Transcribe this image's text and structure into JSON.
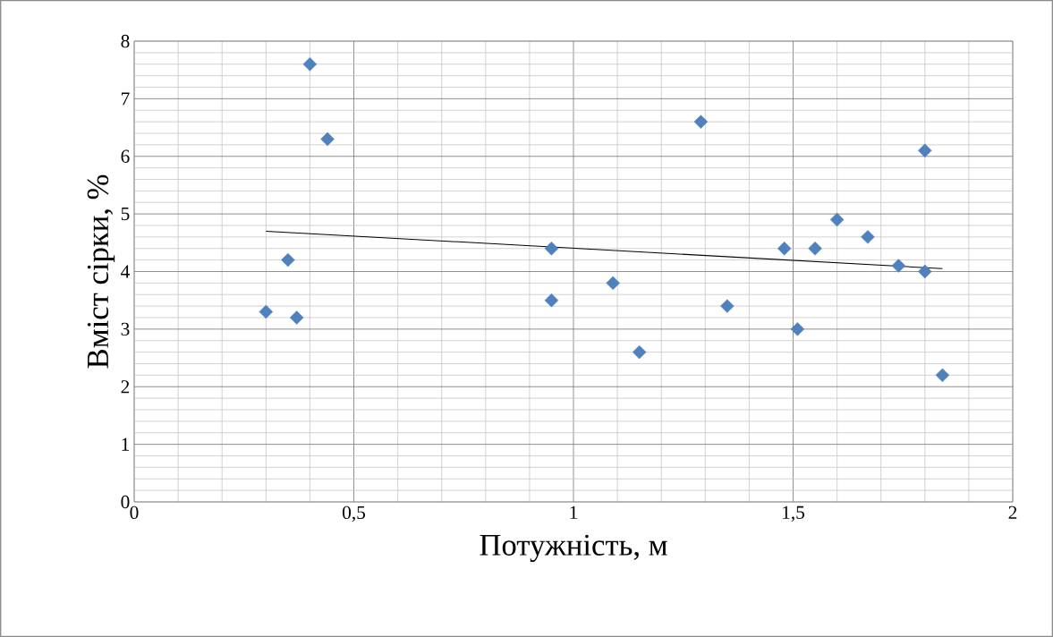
{
  "chart_data": {
    "type": "scatter",
    "xlabel": "Потужність, м",
    "ylabel": "Вміст сірки, %",
    "marker": "diamond",
    "grid": true,
    "xlim": [
      0,
      2
    ],
    "ylim": [
      0,
      8
    ],
    "xticks": [
      0,
      {
        "value": 0.5,
        "label": "0,5"
      },
      1,
      {
        "value": 1.5,
        "label": "1,5"
      },
      2
    ],
    "yticks": [
      0,
      1,
      2,
      3,
      4,
      5,
      6,
      7,
      8
    ],
    "series": [
      {
        "color": "#4f81bd",
        "x": [
          0.3,
          0.35,
          0.4,
          0.37,
          0.44,
          0.95,
          0.95,
          1.09,
          1.15,
          1.29,
          1.35,
          1.48,
          1.51,
          1.55,
          1.6,
          1.67,
          1.74,
          1.8,
          1.8,
          1.84
        ],
        "values": [
          3.3,
          4.2,
          7.6,
          3.2,
          6.3,
          4.4,
          3.5,
          3.8,
          2.6,
          6.6,
          3.4,
          4.4,
          3.0,
          4.4,
          4.9,
          4.6,
          4.1,
          6.1,
          4.0,
          2.2
        ]
      },
      {
        "type": "line",
        "color": "#000000",
        "marker": "none",
        "x": [
          0.3,
          1.84
        ],
        "values": [
          4.7,
          4.05
        ]
      }
    ]
  }
}
